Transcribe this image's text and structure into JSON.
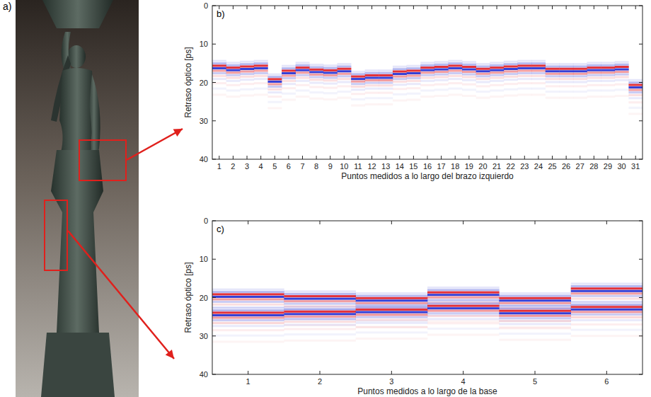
{
  "photo": {
    "label": "a)"
  },
  "chart_data": [
    {
      "type": "heatmap",
      "title": "b)",
      "x_label": "Puntos medidos a lo largo del brazo izquierdo",
      "y_label": "Retraso óptico [ps]",
      "categories": [
        1,
        2,
        3,
        4,
        5,
        6,
        7,
        8,
        9,
        10,
        11,
        12,
        13,
        14,
        15,
        16,
        17,
        18,
        19,
        20,
        21,
        22,
        23,
        24,
        25,
        26,
        27,
        28,
        29,
        30,
        31
      ],
      "series": [
        {
          "values": [
            16,
            16.5,
            16.2,
            16,
            19.5,
            17.3,
            16.5,
            17,
            17.2,
            16.8,
            18.8,
            18.5,
            18.5,
            17.5,
            17.3,
            16.5,
            16.3,
            16,
            16.3,
            16.8,
            16.5,
            16.2,
            16,
            16,
            16.8,
            16.8,
            16.8,
            16.5,
            16.5,
            16.3,
            21
          ]
        }
      ],
      "ylim": [
        40,
        0
      ],
      "yticks": [
        0,
        10,
        20,
        30,
        40
      ]
    },
    {
      "type": "heatmap",
      "title": "c)",
      "x_label": "Puntos medidos a lo largo de la base",
      "y_label": "Retraso óptico [ps]",
      "categories": [
        1,
        2,
        3,
        4,
        5,
        6
      ],
      "series": [
        {
          "values": [
            19.5,
            20,
            20.5,
            19,
            20.5,
            18
          ]
        },
        {
          "values": [
            24.3,
            24,
            23.5,
            22.5,
            23.8,
            22.8
          ]
        }
      ],
      "ylim": [
        40,
        0
      ],
      "yticks": [
        0,
        10,
        20,
        30,
        40
      ]
    }
  ]
}
